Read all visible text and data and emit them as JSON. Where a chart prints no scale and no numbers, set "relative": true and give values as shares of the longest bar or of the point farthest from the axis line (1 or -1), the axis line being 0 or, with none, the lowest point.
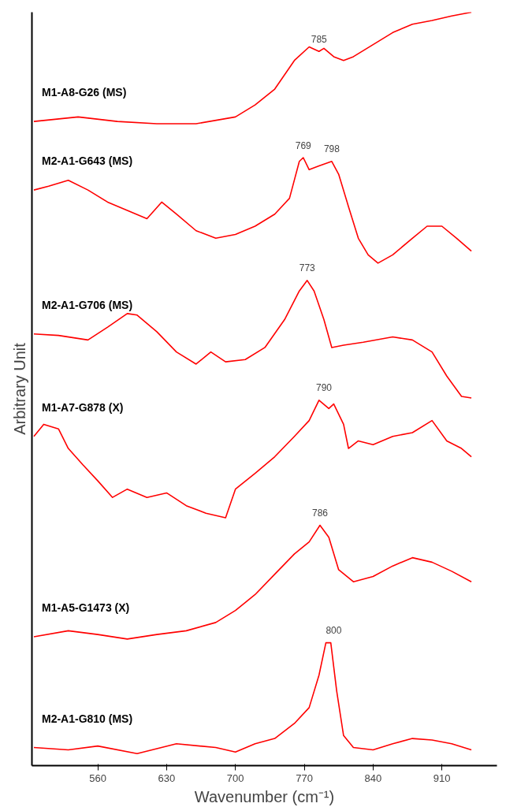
{
  "chart_data": {
    "type": "line",
    "relative": true,
    "xlabel": "Wavenumber (cm⁻¹)",
    "ylabel": "Arbitrary Unit",
    "xlim": [
      493,
      966
    ],
    "xticks": [
      560,
      630,
      700,
      770,
      840,
      910
    ],
    "grid": false,
    "legend": false,
    "marker": "none",
    "line_style": "solid",
    "series": [
      {
        "name": "M1-A8-G26 (MS)",
        "color": "#ff0000",
        "x": [
          495,
          540,
          580,
          620,
          660,
          700,
          720,
          740,
          760,
          775,
          785,
          790,
          800,
          810,
          820,
          840,
          860,
          880,
          900,
          920,
          940
        ],
        "values": [
          0.855,
          0.861,
          0.855,
          0.852,
          0.852,
          0.861,
          0.877,
          0.898,
          0.936,
          0.954,
          0.948,
          0.952,
          0.941,
          0.936,
          0.941,
          0.957,
          0.973,
          0.984,
          0.989,
          0.995,
          1.0
        ]
      },
      {
        "name": "M2-A1-G643 (MS)",
        "color": "#ff0000",
        "x": [
          495,
          510,
          530,
          550,
          570,
          590,
          610,
          625,
          640,
          660,
          680,
          700,
          720,
          740,
          755,
          765,
          769,
          775,
          785,
          798,
          805,
          815,
          825,
          835,
          845,
          860,
          880,
          895,
          910,
          925,
          940
        ],
        "values": [
          0.764,
          0.769,
          0.777,
          0.764,
          0.748,
          0.737,
          0.726,
          0.748,
          0.732,
          0.71,
          0.7,
          0.705,
          0.716,
          0.732,
          0.753,
          0.802,
          0.807,
          0.791,
          0.796,
          0.802,
          0.785,
          0.742,
          0.7,
          0.678,
          0.667,
          0.678,
          0.7,
          0.716,
          0.716,
          0.7,
          0.683
        ]
      },
      {
        "name": "M2-A1-G706 (MS)",
        "color": "#ff0000",
        "x": [
          495,
          520,
          550,
          570,
          590,
          600,
          620,
          640,
          660,
          675,
          690,
          710,
          730,
          750,
          765,
          773,
          780,
          790,
          798,
          810,
          830,
          860,
          880,
          900,
          915,
          930,
          940
        ],
        "values": [
          0.573,
          0.571,
          0.565,
          0.582,
          0.6,
          0.598,
          0.576,
          0.549,
          0.533,
          0.549,
          0.536,
          0.539,
          0.555,
          0.592,
          0.63,
          0.644,
          0.63,
          0.592,
          0.555,
          0.558,
          0.562,
          0.569,
          0.565,
          0.549,
          0.517,
          0.49,
          0.488
        ]
      },
      {
        "name": "M1-A7-G878 (X)",
        "color": "#ff0000",
        "x": [
          495,
          505,
          520,
          530,
          545,
          560,
          575,
          590,
          610,
          630,
          650,
          670,
          690,
          700,
          720,
          740,
          760,
          775,
          785,
          795,
          800,
          810,
          815,
          825,
          840,
          860,
          880,
          900,
          915,
          930,
          940
        ],
        "values": [
          0.437,
          0.453,
          0.447,
          0.421,
          0.399,
          0.378,
          0.356,
          0.367,
          0.356,
          0.362,
          0.345,
          0.335,
          0.329,
          0.367,
          0.388,
          0.41,
          0.437,
          0.458,
          0.485,
          0.474,
          0.48,
          0.453,
          0.421,
          0.431,
          0.426,
          0.437,
          0.442,
          0.458,
          0.431,
          0.421,
          0.41
        ]
      },
      {
        "name": "M1-A5-G1473 (X)",
        "color": "#ff0000",
        "x": [
          495,
          530,
          560,
          590,
          620,
          650,
          680,
          700,
          720,
          740,
          760,
          775,
          786,
          795,
          805,
          820,
          840,
          860,
          880,
          900,
          920,
          940
        ],
        "values": [
          0.171,
          0.179,
          0.174,
          0.168,
          0.174,
          0.179,
          0.19,
          0.206,
          0.227,
          0.254,
          0.281,
          0.297,
          0.319,
          0.303,
          0.26,
          0.244,
          0.251,
          0.265,
          0.276,
          0.27,
          0.258,
          0.244
        ]
      },
      {
        "name": "M2-A1-G810 (MS)",
        "color": "#ff0000",
        "x": [
          495,
          530,
          560,
          600,
          640,
          680,
          700,
          720,
          740,
          760,
          775,
          785,
          792,
          797,
          803,
          810,
          820,
          840,
          860,
          880,
          900,
          920,
          940
        ],
        "values": [
          0.024,
          0.021,
          0.026,
          0.016,
          0.029,
          0.024,
          0.018,
          0.029,
          0.036,
          0.056,
          0.077,
          0.12,
          0.163,
          0.163,
          0.099,
          0.04,
          0.024,
          0.021,
          0.029,
          0.036,
          0.034,
          0.029,
          0.021
        ]
      }
    ],
    "annotations": [
      {
        "text": "785",
        "x": 785,
        "y": 0.948
      },
      {
        "text": "769",
        "x": 769,
        "y": 0.807
      },
      {
        "text": "798",
        "x": 798,
        "y": 0.802
      },
      {
        "text": "773",
        "x": 773,
        "y": 0.644
      },
      {
        "text": "790",
        "x": 790,
        "y": 0.485
      },
      {
        "text": "786",
        "x": 786,
        "y": 0.319
      },
      {
        "text": "800",
        "x": 800,
        "y": 0.163
      }
    ]
  }
}
